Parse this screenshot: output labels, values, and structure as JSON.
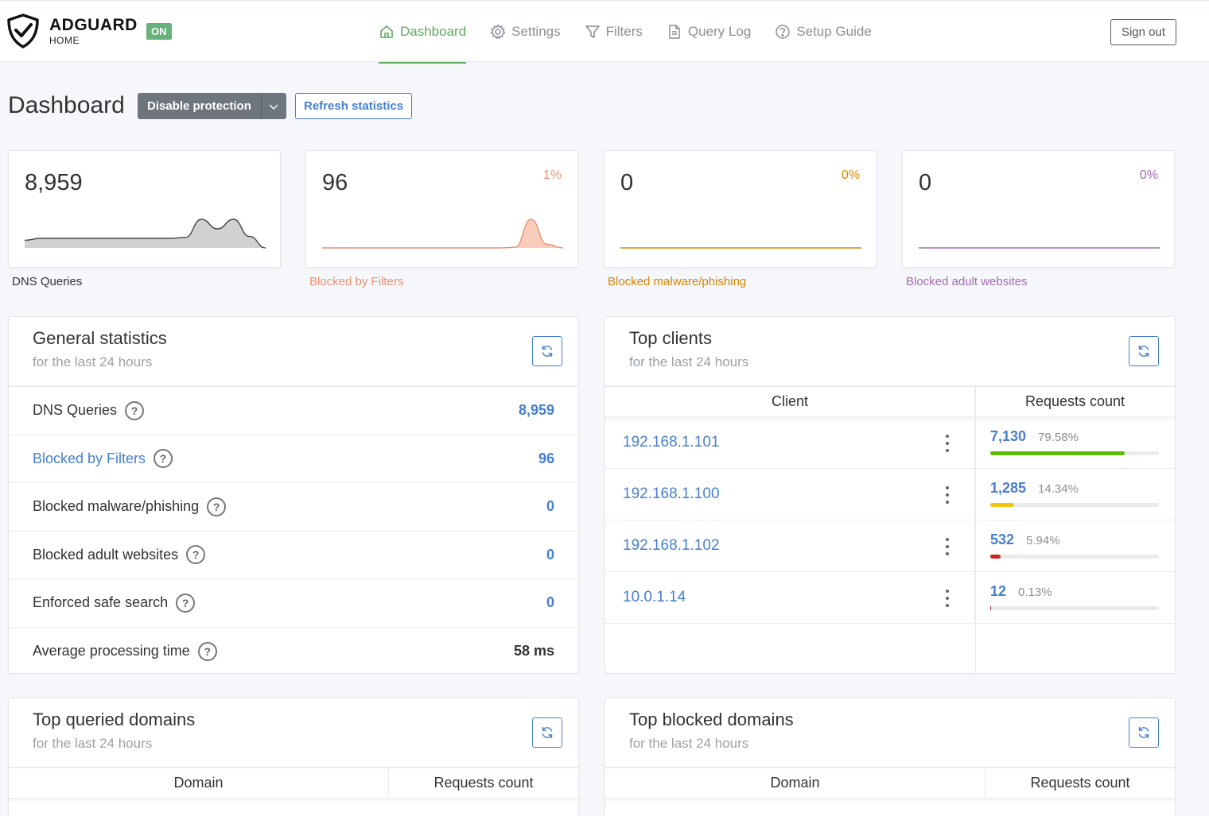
{
  "header": {
    "brand": "ADGUARD",
    "brand_sub": "HOME",
    "status_badge": "ON",
    "nav": [
      {
        "label": "Dashboard",
        "icon": "home-icon",
        "active": true
      },
      {
        "label": "Settings",
        "icon": "gear-icon",
        "active": false
      },
      {
        "label": "Filters",
        "icon": "filter-icon",
        "active": false
      },
      {
        "label": "Query Log",
        "icon": "document-icon",
        "active": false
      },
      {
        "label": "Setup Guide",
        "icon": "help-circle-icon",
        "active": false
      }
    ],
    "sign_out": "Sign out"
  },
  "page": {
    "title": "Dashboard",
    "disable_protection": "Disable protection",
    "refresh_statistics": "Refresh statistics"
  },
  "stats": [
    {
      "value": "8,959",
      "percent": "",
      "label": "DNS Queries",
      "color": "#444444",
      "fill": "#c9c9c9",
      "series": [
        8,
        10,
        10,
        10,
        10,
        10,
        10,
        10,
        10,
        10,
        11,
        30,
        20,
        30,
        12,
        0
      ]
    },
    {
      "value": "96",
      "percent": "1%",
      "label": "Blocked by Filters",
      "color": "#eb9172",
      "fill": "#f7c3ae",
      "series": [
        0,
        0,
        0,
        0,
        0,
        0,
        0,
        0,
        0,
        0,
        0,
        0,
        1,
        48,
        6,
        0
      ]
    },
    {
      "value": "0",
      "percent": "0%",
      "label": "Blocked malware/phishing",
      "color": "#d58500",
      "fill": "none",
      "series": [
        0,
        0,
        0,
        0,
        0,
        0,
        0,
        0,
        0,
        0,
        0,
        0,
        0,
        0,
        0,
        0
      ]
    },
    {
      "value": "0",
      "percent": "0%",
      "label": "Blocked adult websites",
      "color": "#a46bb0",
      "fill": "none",
      "series": [
        0,
        0,
        0,
        0,
        0,
        0,
        0,
        0,
        0,
        0,
        0,
        0,
        0,
        0,
        0,
        0
      ]
    }
  ],
  "general": {
    "title": "General statistics",
    "subtitle": "for the last 24 hours",
    "rows": [
      {
        "label": "DNS Queries",
        "value": "8,959"
      },
      {
        "label": "Blocked by Filters",
        "value": "96"
      },
      {
        "label": "Blocked malware/phishing",
        "value": "0"
      },
      {
        "label": "Blocked adult websites",
        "value": "0"
      },
      {
        "label": "Enforced safe search",
        "value": "0"
      },
      {
        "label": "Average processing time",
        "value": "58 ms"
      }
    ]
  },
  "clients": {
    "title": "Top clients",
    "subtitle": "for the last 24 hours",
    "col_client": "Client",
    "col_count": "Requests count",
    "rows": [
      {
        "ip": "192.168.1.101",
        "count": "7,130",
        "percent": "79.58%",
        "fraction": 0.7958,
        "color": "#5eba00"
      },
      {
        "ip": "192.168.1.100",
        "count": "1,285",
        "percent": "14.34%",
        "fraction": 0.1434,
        "color": "#f1c40f"
      },
      {
        "ip": "192.168.1.102",
        "count": "532",
        "percent": "5.94%",
        "fraction": 0.0594,
        "color": "#cd201f"
      },
      {
        "ip": "10.0.1.14",
        "count": "12",
        "percent": "0.13%",
        "fraction": 0.0013,
        "color": "#cd201f"
      }
    ]
  },
  "queried": {
    "title": "Top queried domains",
    "subtitle": "for the last 24 hours",
    "col_domain": "Domain",
    "col_count": "Requests count"
  },
  "blocked": {
    "title": "Top blocked domains",
    "subtitle": "for the last 24 hours",
    "col_domain": "Domain",
    "col_count": "Requests count"
  }
}
